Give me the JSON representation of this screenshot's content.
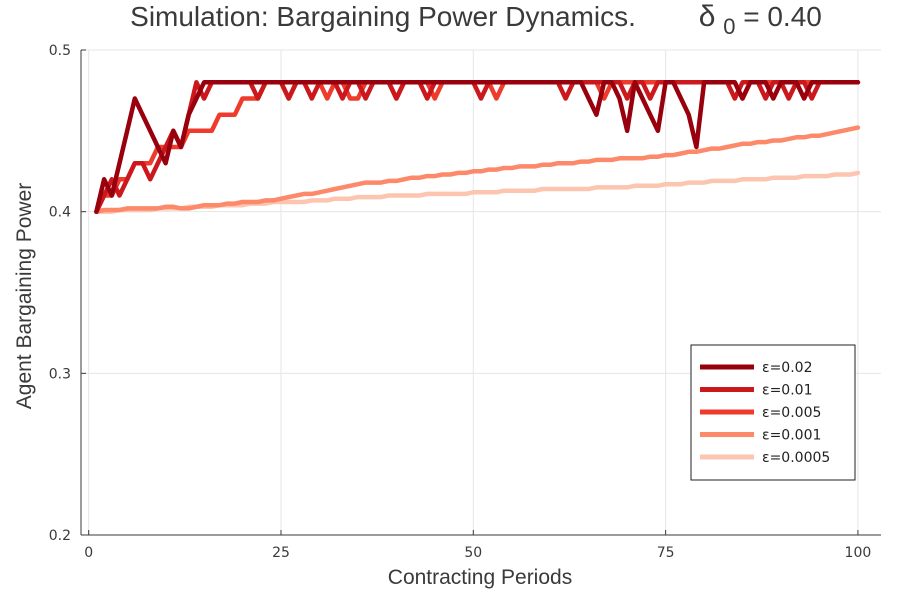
{
  "chart_data": {
    "type": "line",
    "title_main": "Simulation: Bargaining Power Dynamics.",
    "title_param_symbol": "δ",
    "title_param_subscript": "0",
    "title_param_value": " = 0.40",
    "xlabel": "Contracting Periods",
    "ylabel": "Agent Bargaining Power",
    "xlim": [
      -1,
      103
    ],
    "ylim": [
      0.2,
      0.5
    ],
    "x_ticks": [
      0,
      25,
      50,
      75,
      100
    ],
    "y_ticks": [
      0.2,
      0.3,
      0.4,
      0.5
    ],
    "x_tick_labels": [
      "0",
      "25",
      "50",
      "75",
      "100"
    ],
    "y_tick_labels": [
      "0.2",
      "0.3",
      "0.4",
      "0.5"
    ],
    "grid": true,
    "legend_position": "bottom-right",
    "series": [
      {
        "name": "ε=0.02",
        "color": "#99000d",
        "x": [
          1,
          2,
          3,
          4,
          5,
          6,
          7,
          8,
          9,
          10,
          11,
          12,
          13,
          14,
          15,
          16,
          17,
          18,
          19,
          20,
          21,
          22,
          23,
          24,
          25,
          26,
          27,
          28,
          29,
          30,
          31,
          32,
          33,
          34,
          35,
          36,
          37,
          38,
          39,
          40,
          41,
          42,
          43,
          44,
          45,
          46,
          47,
          48,
          49,
          50,
          51,
          52,
          53,
          54,
          55,
          56,
          57,
          58,
          59,
          60,
          61,
          62,
          63,
          64,
          65,
          66,
          67,
          68,
          69,
          70,
          71,
          72,
          73,
          74,
          75,
          76,
          77,
          78,
          79,
          80,
          81,
          82,
          83,
          84,
          85,
          86,
          87,
          88,
          89,
          90,
          91,
          92,
          93,
          94,
          95,
          96,
          97,
          98,
          99,
          100
        ],
        "y": [
          0.4,
          0.42,
          0.41,
          0.43,
          0.45,
          0.47,
          0.46,
          0.45,
          0.44,
          0.43,
          0.45,
          0.44,
          0.46,
          0.47,
          0.48,
          0.48,
          0.48,
          0.48,
          0.48,
          0.48,
          0.48,
          0.48,
          0.48,
          0.48,
          0.48,
          0.48,
          0.48,
          0.48,
          0.48,
          0.48,
          0.48,
          0.48,
          0.48,
          0.48,
          0.48,
          0.48,
          0.48,
          0.48,
          0.48,
          0.48,
          0.48,
          0.48,
          0.48,
          0.48,
          0.48,
          0.48,
          0.48,
          0.48,
          0.48,
          0.48,
          0.48,
          0.48,
          0.48,
          0.48,
          0.48,
          0.48,
          0.48,
          0.48,
          0.48,
          0.48,
          0.48,
          0.48,
          0.48,
          0.48,
          0.47,
          0.46,
          0.48,
          0.48,
          0.47,
          0.45,
          0.48,
          0.47,
          0.46,
          0.45,
          0.48,
          0.48,
          0.47,
          0.46,
          0.44,
          0.48,
          0.48,
          0.48,
          0.48,
          0.48,
          0.47,
          0.48,
          0.48,
          0.48,
          0.47,
          0.48,
          0.48,
          0.48,
          0.47,
          0.48,
          0.48,
          0.48,
          0.48,
          0.48,
          0.48,
          0.48
        ]
      },
      {
        "name": "ε=0.01",
        "color": "#cb181d",
        "x": [
          1,
          2,
          3,
          4,
          5,
          6,
          7,
          8,
          9,
          10,
          11,
          12,
          13,
          14,
          15,
          16,
          17,
          18,
          19,
          20,
          21,
          22,
          23,
          24,
          25,
          26,
          27,
          28,
          29,
          30,
          31,
          32,
          33,
          34,
          35,
          36,
          37,
          38,
          39,
          40,
          41,
          42,
          43,
          44,
          45,
          46,
          47,
          48,
          49,
          50,
          51,
          52,
          53,
          54,
          55,
          56,
          57,
          58,
          59,
          60,
          61,
          62,
          63,
          64,
          65,
          66,
          67,
          68,
          69,
          70,
          71,
          72,
          73,
          74,
          75,
          76,
          77,
          78,
          79,
          80,
          81,
          82,
          83,
          84,
          85,
          86,
          87,
          88,
          89,
          90,
          91,
          92,
          93,
          94,
          95,
          96,
          97,
          98,
          99,
          100
        ],
        "y": [
          0.4,
          0.41,
          0.42,
          0.41,
          0.42,
          0.43,
          0.43,
          0.42,
          0.43,
          0.44,
          0.45,
          0.44,
          0.46,
          0.48,
          0.47,
          0.48,
          0.48,
          0.48,
          0.48,
          0.48,
          0.48,
          0.47,
          0.48,
          0.48,
          0.48,
          0.47,
          0.48,
          0.48,
          0.47,
          0.48,
          0.48,
          0.48,
          0.47,
          0.48,
          0.48,
          0.47,
          0.48,
          0.48,
          0.48,
          0.47,
          0.48,
          0.48,
          0.48,
          0.47,
          0.48,
          0.48,
          0.48,
          0.48,
          0.48,
          0.48,
          0.47,
          0.48,
          0.48,
          0.48,
          0.48,
          0.48,
          0.48,
          0.48,
          0.48,
          0.48,
          0.48,
          0.47,
          0.48,
          0.48,
          0.48,
          0.48,
          0.48,
          0.48,
          0.48,
          0.47,
          0.48,
          0.48,
          0.47,
          0.48,
          0.48,
          0.48,
          0.48,
          0.48,
          0.48,
          0.48,
          0.48,
          0.48,
          0.48,
          0.47,
          0.48,
          0.48,
          0.48,
          0.47,
          0.48,
          0.48,
          0.47,
          0.48,
          0.48,
          0.47,
          0.48,
          0.48,
          0.48,
          0.48,
          0.48,
          0.48
        ]
      },
      {
        "name": "ε=0.005",
        "color": "#ef3b2c",
        "x": [
          1,
          2,
          3,
          4,
          5,
          6,
          7,
          8,
          9,
          10,
          11,
          12,
          13,
          14,
          15,
          16,
          17,
          18,
          19,
          20,
          21,
          22,
          23,
          24,
          25,
          26,
          27,
          28,
          29,
          30,
          31,
          32,
          33,
          34,
          35,
          36,
          37,
          38,
          39,
          40,
          41,
          42,
          43,
          44,
          45,
          46,
          47,
          48,
          49,
          50,
          51,
          52,
          53,
          54,
          55,
          56,
          57,
          58,
          59,
          60,
          61,
          62,
          63,
          64,
          65,
          66,
          67,
          68,
          69,
          70,
          71,
          72,
          73,
          74,
          75,
          76,
          77,
          78,
          79,
          80,
          81,
          82,
          83,
          84,
          85,
          86,
          87,
          88,
          89,
          90,
          91,
          92,
          93,
          94,
          95,
          96,
          97,
          98,
          99,
          100
        ],
        "y": [
          0.4,
          0.41,
          0.41,
          0.42,
          0.42,
          0.43,
          0.43,
          0.43,
          0.44,
          0.44,
          0.44,
          0.44,
          0.45,
          0.45,
          0.45,
          0.45,
          0.46,
          0.46,
          0.46,
          0.47,
          0.47,
          0.47,
          0.48,
          0.48,
          0.48,
          0.47,
          0.48,
          0.48,
          0.48,
          0.48,
          0.47,
          0.48,
          0.48,
          0.47,
          0.47,
          0.48,
          0.48,
          0.48,
          0.48,
          0.47,
          0.48,
          0.48,
          0.48,
          0.48,
          0.47,
          0.48,
          0.48,
          0.48,
          0.48,
          0.48,
          0.48,
          0.48,
          0.47,
          0.48,
          0.48,
          0.48,
          0.48,
          0.48,
          0.48,
          0.48,
          0.48,
          0.48,
          0.48,
          0.48,
          0.48,
          0.48,
          0.47,
          0.48,
          0.48,
          0.48,
          0.48,
          0.48,
          0.48,
          0.48,
          0.48,
          0.48,
          0.48,
          0.48,
          0.48,
          0.48,
          0.48,
          0.48,
          0.48,
          0.48,
          0.47,
          0.48,
          0.48,
          0.48,
          0.48,
          0.48,
          0.48,
          0.48,
          0.48,
          0.48,
          0.48,
          0.48,
          0.48,
          0.48,
          0.48,
          0.48
        ]
      },
      {
        "name": "ε=0.001",
        "color": "#fc8a6a",
        "x": [
          1,
          2,
          3,
          4,
          5,
          6,
          7,
          8,
          9,
          10,
          11,
          12,
          13,
          14,
          15,
          16,
          17,
          18,
          19,
          20,
          21,
          22,
          23,
          24,
          25,
          26,
          27,
          28,
          29,
          30,
          31,
          32,
          33,
          34,
          35,
          36,
          37,
          38,
          39,
          40,
          41,
          42,
          43,
          44,
          45,
          46,
          47,
          48,
          49,
          50,
          51,
          52,
          53,
          54,
          55,
          56,
          57,
          58,
          59,
          60,
          61,
          62,
          63,
          64,
          65,
          66,
          67,
          68,
          69,
          70,
          71,
          72,
          73,
          74,
          75,
          76,
          77,
          78,
          79,
          80,
          81,
          82,
          83,
          84,
          85,
          86,
          87,
          88,
          89,
          90,
          91,
          92,
          93,
          94,
          95,
          96,
          97,
          98,
          99,
          100
        ],
        "y": [
          0.4,
          0.401,
          0.401,
          0.401,
          0.402,
          0.402,
          0.402,
          0.402,
          0.402,
          0.403,
          0.403,
          0.402,
          0.402,
          0.403,
          0.404,
          0.404,
          0.404,
          0.405,
          0.405,
          0.406,
          0.406,
          0.406,
          0.407,
          0.407,
          0.408,
          0.409,
          0.41,
          0.411,
          0.411,
          0.412,
          0.413,
          0.414,
          0.415,
          0.416,
          0.417,
          0.418,
          0.418,
          0.418,
          0.419,
          0.419,
          0.42,
          0.421,
          0.421,
          0.422,
          0.422,
          0.423,
          0.423,
          0.424,
          0.424,
          0.425,
          0.425,
          0.426,
          0.426,
          0.427,
          0.427,
          0.428,
          0.428,
          0.428,
          0.429,
          0.429,
          0.43,
          0.43,
          0.43,
          0.431,
          0.431,
          0.432,
          0.432,
          0.432,
          0.433,
          0.433,
          0.433,
          0.433,
          0.434,
          0.434,
          0.435,
          0.435,
          0.436,
          0.437,
          0.437,
          0.438,
          0.439,
          0.439,
          0.44,
          0.441,
          0.442,
          0.442,
          0.443,
          0.443,
          0.444,
          0.444,
          0.445,
          0.446,
          0.446,
          0.447,
          0.447,
          0.448,
          0.449,
          0.45,
          0.451,
          0.452
        ]
      },
      {
        "name": "ε=0.0005",
        "color": "#fcc5b0",
        "x": [
          1,
          2,
          3,
          4,
          5,
          6,
          7,
          8,
          9,
          10,
          11,
          12,
          13,
          14,
          15,
          16,
          17,
          18,
          19,
          20,
          21,
          22,
          23,
          24,
          25,
          26,
          27,
          28,
          29,
          30,
          31,
          32,
          33,
          34,
          35,
          36,
          37,
          38,
          39,
          40,
          41,
          42,
          43,
          44,
          45,
          46,
          47,
          48,
          49,
          50,
          51,
          52,
          53,
          54,
          55,
          56,
          57,
          58,
          59,
          60,
          61,
          62,
          63,
          64,
          65,
          66,
          67,
          68,
          69,
          70,
          71,
          72,
          73,
          74,
          75,
          76,
          77,
          78,
          79,
          80,
          81,
          82,
          83,
          84,
          85,
          86,
          87,
          88,
          89,
          90,
          91,
          92,
          93,
          94,
          95,
          96,
          97,
          98,
          99,
          100
        ],
        "y": [
          0.4,
          0.4,
          0.4,
          0.401,
          0.401,
          0.401,
          0.401,
          0.401,
          0.402,
          0.402,
          0.402,
          0.402,
          0.403,
          0.403,
          0.403,
          0.403,
          0.404,
          0.404,
          0.404,
          0.404,
          0.405,
          0.405,
          0.405,
          0.406,
          0.406,
          0.406,
          0.406,
          0.406,
          0.407,
          0.407,
          0.407,
          0.408,
          0.408,
          0.408,
          0.409,
          0.409,
          0.409,
          0.409,
          0.41,
          0.41,
          0.41,
          0.41,
          0.41,
          0.411,
          0.411,
          0.411,
          0.411,
          0.411,
          0.411,
          0.412,
          0.412,
          0.412,
          0.412,
          0.413,
          0.413,
          0.413,
          0.413,
          0.413,
          0.414,
          0.414,
          0.414,
          0.414,
          0.414,
          0.414,
          0.414,
          0.415,
          0.415,
          0.415,
          0.415,
          0.415,
          0.416,
          0.416,
          0.416,
          0.416,
          0.417,
          0.417,
          0.417,
          0.418,
          0.418,
          0.418,
          0.419,
          0.419,
          0.419,
          0.419,
          0.42,
          0.42,
          0.42,
          0.42,
          0.421,
          0.421,
          0.421,
          0.421,
          0.422,
          0.422,
          0.422,
          0.422,
          0.423,
          0.423,
          0.423,
          0.424
        ]
      }
    ]
  }
}
